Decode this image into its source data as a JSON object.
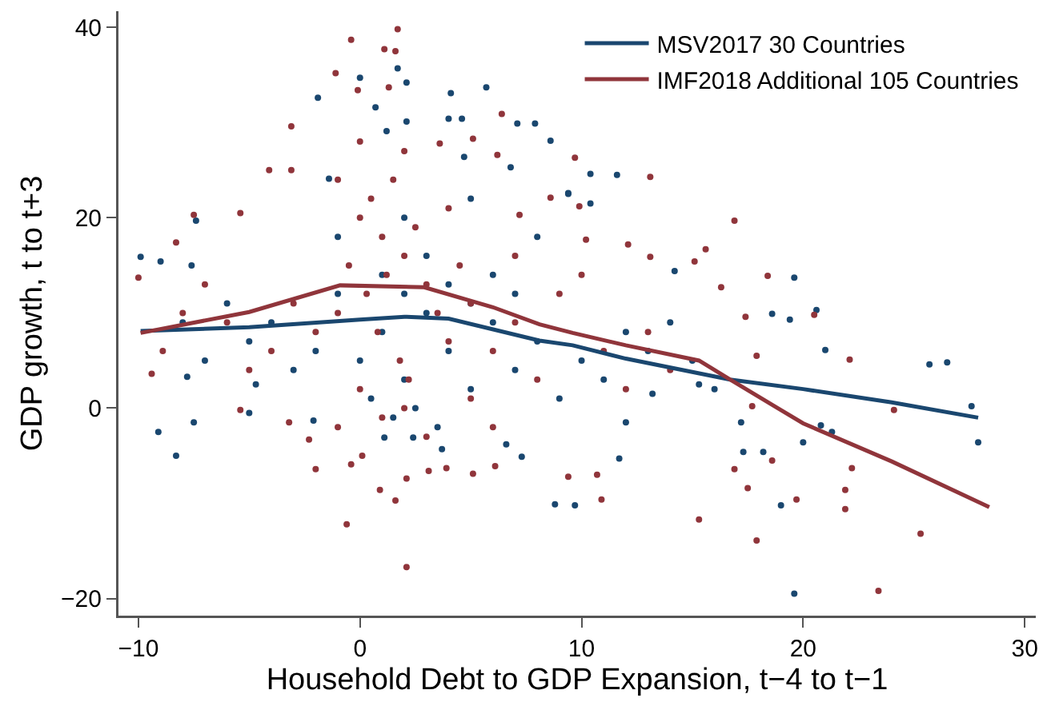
{
  "chart_data": {
    "type": "scatter",
    "xlabel": "Household Debt to GDP Expansion, t−4 to t−1",
    "ylabel": "GDP growth, t to t+3",
    "xlim": [
      -10.9,
      30.5
    ],
    "xticks": [
      {
        "value": -10,
        "label": "−10"
      },
      0,
      10,
      20,
      30
    ],
    "ylim": [
      -21.8,
      41.7
    ],
    "yticks": [
      {
        "value": -20,
        "label": "−20"
      },
      0,
      20,
      40
    ],
    "grid": false,
    "legend": "top right",
    "series": [
      {
        "marker": "circle",
        "color": "#1a476f",
        "x": [
          1.7,
          0,
          2.1,
          -1.9,
          0.7,
          4.1,
          5.7,
          4,
          4.6,
          7.1,
          7.9,
          8.6,
          2.1,
          1.2,
          4.7,
          6.8,
          -1.4,
          -7.4,
          -9.9,
          -9,
          -7.6,
          9.4,
          11.6,
          10.4,
          9.4,
          10.4,
          14.2,
          19.6,
          20.6,
          18.6,
          19.4,
          25.7,
          26.5,
          27.6,
          27.9,
          21,
          20.8,
          21.3,
          19.6,
          19,
          17.3,
          17.2,
          18.2,
          20,
          8.8,
          9.7,
          11.7,
          12,
          13.2,
          15.3,
          -9.1,
          -8.3,
          -7.5,
          -5,
          1.1,
          2.4,
          3.7,
          6.6,
          7.3,
          -2.1,
          -4.7,
          -7.8,
          0,
          1,
          2,
          3,
          4,
          5,
          6,
          7,
          8,
          9,
          10,
          11,
          12,
          -1,
          -2,
          -3,
          -4,
          -5,
          -6,
          -7,
          -8,
          1,
          2,
          3,
          4,
          5,
          6,
          7,
          8,
          0.5,
          1.5,
          2.5,
          3.5,
          13,
          14,
          15,
          16,
          -1,
          2,
          5
        ],
        "values": [
          35.7,
          34.7,
          34.2,
          32.6,
          31.6,
          33.1,
          33.7,
          30.4,
          30.4,
          29.9,
          29.9,
          28.1,
          30.1,
          29.1,
          26.4,
          25.3,
          24.1,
          19.7,
          15.9,
          15.4,
          15,
          22.6,
          24.5,
          24.6,
          22.5,
          21.5,
          14.4,
          13.7,
          10.3,
          9.9,
          9.3,
          4.6,
          4.8,
          0.2,
          -3.6,
          6.1,
          -1.8,
          -2.5,
          -19.5,
          -10.2,
          -4.6,
          -1.5,
          -4.6,
          -3.6,
          -10.1,
          -10.2,
          -5.3,
          -1.5,
          1.5,
          2.5,
          -2.5,
          -5,
          -1.5,
          -0.5,
          -3.1,
          -3.1,
          -4.3,
          -3.8,
          -5.1,
          -1.3,
          2.5,
          3.3,
          5,
          8,
          3,
          10,
          6,
          2,
          9,
          4,
          7,
          1,
          5,
          3,
          8,
          12,
          6,
          4,
          9,
          7,
          11,
          5,
          9,
          14,
          12,
          16,
          13,
          11,
          14,
          12,
          18,
          1,
          -1,
          0,
          -2,
          6,
          9,
          5,
          2,
          18,
          20,
          22
        ]
      },
      {
        "marker": "circle",
        "color": "#90353b",
        "x": [
          1.7,
          -0.4,
          1.1,
          1.6,
          -1.1,
          -0.1,
          1.3,
          -3.1,
          -4.1,
          -3.1,
          -7.5,
          -5.4,
          -8.3,
          -10,
          6.4,
          5.1,
          6.2,
          3.6,
          8.6,
          7.2,
          9.7,
          13.1,
          9.9,
          16.9,
          10.2,
          12.1,
          13.1,
          15.6,
          18.4,
          15.1,
          20.5,
          16.3,
          17.4,
          22.1,
          24.1,
          22.2,
          21.9,
          21.9,
          25.3,
          23.4,
          17.9,
          15.3,
          16.9,
          17.5,
          18.6,
          19.7,
          17.7,
          17.9,
          10.9,
          10.7,
          9.4,
          -0.6,
          2.1,
          1.6,
          0.9,
          -2,
          -0.4,
          0.1,
          2.1,
          3.1,
          3.9,
          5.1,
          6.1,
          -2.3,
          -3.2,
          -5.4,
          -9.4,
          -8.9,
          0,
          0.5,
          1,
          1.5,
          2,
          -0.5,
          0.3,
          1.2,
          2.5,
          3,
          -1,
          0.8,
          1.8,
          2.2,
          3.5,
          4,
          4.5,
          5,
          6,
          7,
          -2,
          -3,
          -4,
          -5,
          -6,
          -7,
          -8,
          8,
          9,
          11,
          12,
          13,
          14,
          0,
          1,
          2,
          3,
          5,
          6,
          -1,
          10,
          7,
          4,
          2,
          0,
          -1
        ],
        "values": [
          39.8,
          38.7,
          37.7,
          37.5,
          35.2,
          33.4,
          33.7,
          29.6,
          25,
          25,
          20.3,
          20.5,
          17.4,
          13.7,
          30.9,
          28.3,
          26.6,
          27.8,
          22.1,
          20.3,
          26.3,
          24.3,
          21.2,
          19.7,
          17.7,
          17.2,
          15.9,
          16.7,
          13.9,
          15.4,
          9.8,
          12.7,
          9.6,
          5.1,
          -0.2,
          -6.3,
          -8.6,
          -10.6,
          -13.2,
          -19.2,
          -13.9,
          -11.7,
          -6.4,
          -8.4,
          -5.5,
          -9.6,
          0.2,
          5.5,
          -9.6,
          -7,
          -7.2,
          -12.2,
          -16.7,
          -9.7,
          -8.6,
          -6.4,
          -5.9,
          -5,
          -7.4,
          -6.6,
          -6.3,
          -6.9,
          -6.1,
          -3.3,
          -1.5,
          -0.2,
          3.6,
          6,
          20,
          22,
          18,
          24,
          16,
          15,
          12,
          14,
          19,
          13,
          10,
          8,
          5,
          3,
          10,
          7,
          15,
          11,
          6,
          9,
          8,
          11,
          6,
          4,
          9,
          13,
          10,
          3,
          12,
          6,
          2,
          8,
          4,
          2,
          -1,
          0,
          -3,
          1,
          -2,
          -2,
          14,
          16,
          21,
          27,
          28,
          24
        ]
      },
      {
        "type": "line",
        "marker": "none",
        "name": "MSV2017 30 Countries",
        "color": "#1a476f",
        "x": [
          -9.9,
          -5,
          0,
          2,
          4,
          8.1,
          9.6,
          12,
          16.7,
          20,
          24,
          27.9
        ],
        "values": [
          8.1,
          8.5,
          9.3,
          9.6,
          9.4,
          7.1,
          6.6,
          5.2,
          3,
          2,
          0.6,
          -1
        ]
      },
      {
        "type": "line",
        "marker": "none",
        "name": "IMF2018 Additional 105 Countries",
        "color": "#90353b",
        "x": [
          -9.9,
          -5,
          -0.9,
          2.9,
          6,
          8.1,
          9.6,
          12,
          15.3,
          16.7,
          20,
          24,
          28.4
        ],
        "values": [
          7.9,
          10.1,
          12.9,
          12.7,
          10.6,
          8.8,
          7.9,
          6.6,
          5,
          3,
          -1.6,
          -5.6,
          -10.4
        ]
      }
    ]
  }
}
